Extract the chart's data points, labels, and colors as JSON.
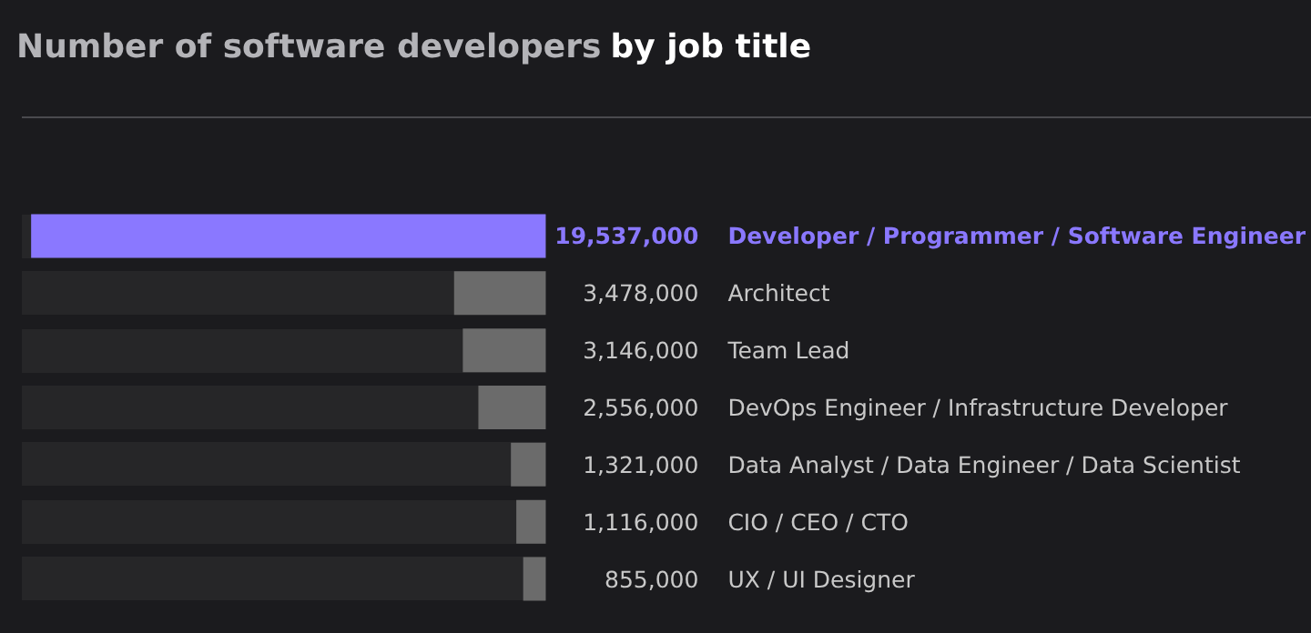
{
  "chart_data": {
    "type": "bar",
    "orientation": "horizontal",
    "title": "Number of software developers",
    "subtitle": "by job title",
    "categories": [
      "Developer / Programmer / Software Engineer",
      "Architect",
      "Team Lead",
      "DevOps Engineer / Infrastructure Developer",
      "Data Analyst / Data Engineer / Data Scientist",
      "CIO / CEO / CTO",
      "UX / UI Designer"
    ],
    "values": [
      19537000,
      3478000,
      3146000,
      2556000,
      1321000,
      1116000,
      855000
    ],
    "value_labels": [
      "19,537,000",
      "3,478,000",
      "3,146,000",
      "2,556,000",
      "1,321,000",
      "1,116,000",
      "855,000"
    ],
    "colors": [
      "#8a78ff",
      "#6b6b6b",
      "#6b6b6b",
      "#6b6b6b",
      "#6b6b6b",
      "#6b6b6b",
      "#6b6b6b"
    ],
    "grid": false,
    "tick_labels": "y"
  }
}
